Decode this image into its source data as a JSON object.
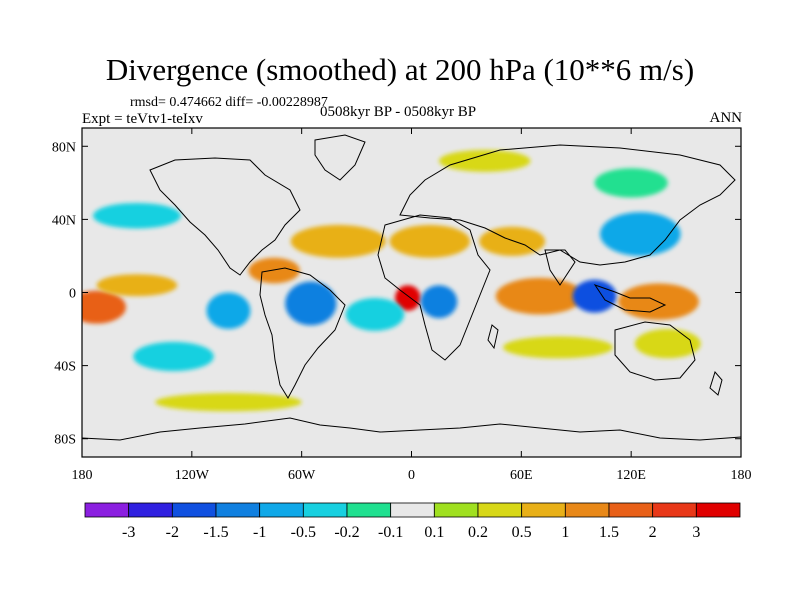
{
  "title": "Divergence (smoothed) at 200 hPa (10**6 m/s)",
  "stats": "rmsd= 0.474662 diff= -0.00228987",
  "experiment": "Expt = teVtv1-teIxv",
  "period": "0508kyr BP - 0508kyr BP",
  "season": "ANN",
  "chart_data": {
    "type": "heatmap",
    "projection": "cylindrical-equidistant",
    "lon_range": [
      -180,
      180
    ],
    "lat_range": [
      -90,
      90
    ],
    "x_ticks": [
      {
        "value": -180,
        "label": "180"
      },
      {
        "value": -120,
        "label": "120W"
      },
      {
        "value": -60,
        "label": "60W"
      },
      {
        "value": 0,
        "label": "0"
      },
      {
        "value": 60,
        "label": "60E"
      },
      {
        "value": 120,
        "label": "120E"
      },
      {
        "value": 180,
        "label": "180"
      }
    ],
    "y_ticks": [
      {
        "value": 80,
        "label": "80N"
      },
      {
        "value": 40,
        "label": "40N"
      },
      {
        "value": 0,
        "label": "0"
      },
      {
        "value": -40,
        "label": "40S"
      },
      {
        "value": -80,
        "label": "80S"
      }
    ],
    "colorbar": {
      "labels": [
        "-3",
        "-2",
        "-1.5",
        "-1",
        "-0.5",
        "-0.2",
        "-0.1",
        "0.1",
        "0.2",
        "0.5",
        "1",
        "1.5",
        "2",
        "3"
      ],
      "colors": [
        "#8b1fe0",
        "#3020e0",
        "#1050e0",
        "#1080e0",
        "#10a8e8",
        "#18d0e0",
        "#20e090",
        "#e8e8e8",
        "#a0e020",
        "#d8d818",
        "#e8b018",
        "#e88818",
        "#e86018",
        "#e83818",
        "#e00000"
      ]
    },
    "features": [
      {
        "name": "trop-pacific-conv",
        "lon": -172,
        "lat": -8,
        "rx": 16,
        "ry": 9,
        "value": 1.5
      },
      {
        "name": "east-pac-div",
        "lon": -150,
        "lat": 4,
        "rx": 22,
        "ry": 6,
        "value": 0.5
      },
      {
        "name": "amazon-conv",
        "lon": -55,
        "lat": -6,
        "rx": 14,
        "ry": 12,
        "value": -1.5
      },
      {
        "name": "east-pacific-div",
        "lon": -100,
        "lat": -10,
        "rx": 12,
        "ry": 10,
        "value": -1
      },
      {
        "name": "caribbean-div",
        "lon": -75,
        "lat": 12,
        "rx": 14,
        "ry": 7,
        "value": 1
      },
      {
        "name": "north-atlantic-div",
        "lon": -40,
        "lat": 28,
        "rx": 26,
        "ry": 9,
        "value": 0.5
      },
      {
        "name": "north-africa-div",
        "lon": 10,
        "lat": 28,
        "rx": 22,
        "ry": 9,
        "value": 0.5
      },
      {
        "name": "gulf-guinea-max",
        "lon": -2,
        "lat": -3,
        "rx": 7,
        "ry": 7,
        "value": 3
      },
      {
        "name": "congo-conv",
        "lon": 15,
        "lat": -5,
        "rx": 10,
        "ry": 9,
        "value": -1.5
      },
      {
        "name": "south-atlantic-conv",
        "lon": -20,
        "lat": -12,
        "rx": 16,
        "ry": 9,
        "value": -0.5
      },
      {
        "name": "arabia-div",
        "lon": 55,
        "lat": 28,
        "rx": 18,
        "ry": 8,
        "value": 0.5
      },
      {
        "name": "indian-ocean-div",
        "lon": 70,
        "lat": -2,
        "rx": 24,
        "ry": 10,
        "value": 1
      },
      {
        "name": "maritime-conv",
        "lon": 100,
        "lat": -2,
        "rx": 12,
        "ry": 9,
        "value": -2
      },
      {
        "name": "west-pacific-div",
        "lon": 135,
        "lat": -5,
        "rx": 22,
        "ry": 10,
        "value": 1
      },
      {
        "name": "east-asia-conv",
        "lon": 125,
        "lat": 32,
        "rx": 22,
        "ry": 12,
        "value": -1
      },
      {
        "name": "south-indian-div",
        "lon": 80,
        "lat": -30,
        "rx": 30,
        "ry": 6,
        "value": 0.2
      },
      {
        "name": "southern-ocean-div",
        "lon": -100,
        "lat": -60,
        "rx": 40,
        "ry": 5,
        "value": 0.2
      },
      {
        "name": "arctic-div",
        "lon": 40,
        "lat": 72,
        "rx": 25,
        "ry": 6,
        "value": 0.2
      },
      {
        "name": "siberia-conv",
        "lon": 120,
        "lat": 60,
        "rx": 20,
        "ry": 8,
        "value": -0.2
      },
      {
        "name": "north-pacific-conv",
        "lon": -150,
        "lat": 42,
        "rx": 24,
        "ry": 7,
        "value": -0.5
      },
      {
        "name": "south-pacific-conv",
        "lon": -130,
        "lat": -35,
        "rx": 22,
        "ry": 8,
        "value": -0.5
      },
      {
        "name": "australia-div",
        "lon": 140,
        "lat": -28,
        "rx": 18,
        "ry": 8,
        "value": 0.2
      }
    ]
  }
}
